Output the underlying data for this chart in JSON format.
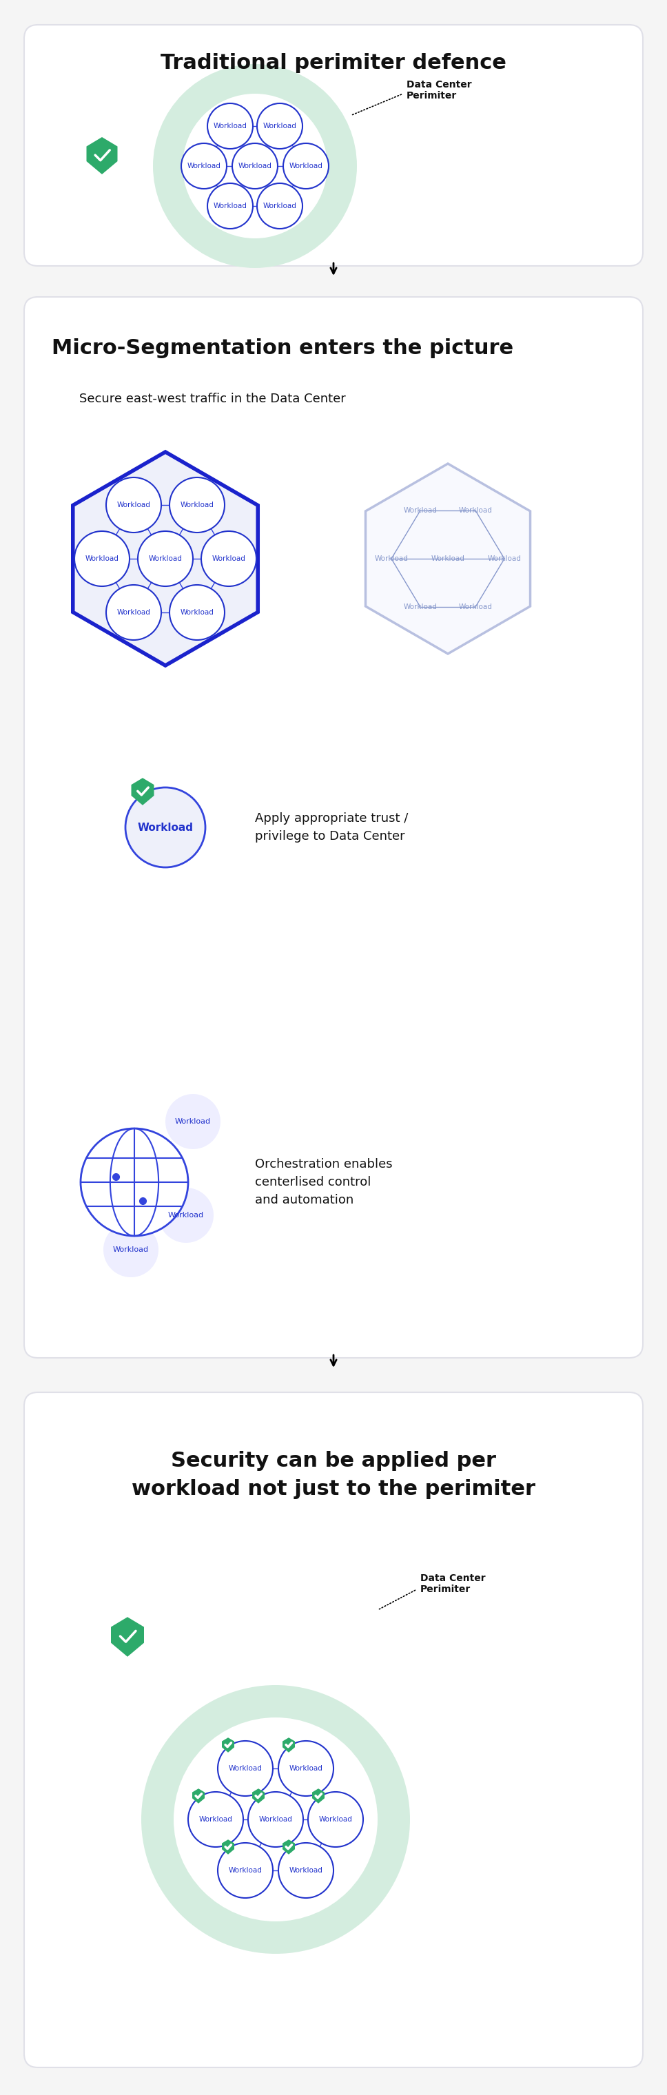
{
  "bg_color": "#ffffff",
  "panel_bg": "#ffffff",
  "panel_border": "#e0e0e8",
  "outer_bg": "#f5f5f5",
  "section1_title": "Traditional perimiter defence",
  "section2_title": "Micro-Segmentation enters the picture",
  "section3_title": "Security can be applied per\nworkload not just to the perimiter",
  "workload_label": "Workload",
  "data_center_label": "Data Center\nPerimiter",
  "secure_traffic_label": "Secure east-west traffic in the Data Center",
  "trust_label": "Apply appropriate trust /\nprivilege to Data Center",
  "orchestration_label": "Orchestration enables\ncenterlised control\nand automation",
  "blue_dark": "#1a22cc",
  "blue_mid": "#3344dd",
  "blue_light": "#aabbee",
  "blue_pale": "#dde4f8",
  "green_dark": "#2daa6a",
  "green_light": "#c8e6d8",
  "green_ring": "#d4eddf",
  "circle_stroke": "#2233cc",
  "circle_fill": "#ffffff",
  "text_dark": "#111111",
  "text_blue": "#2233cc",
  "text_gray": "#444444"
}
